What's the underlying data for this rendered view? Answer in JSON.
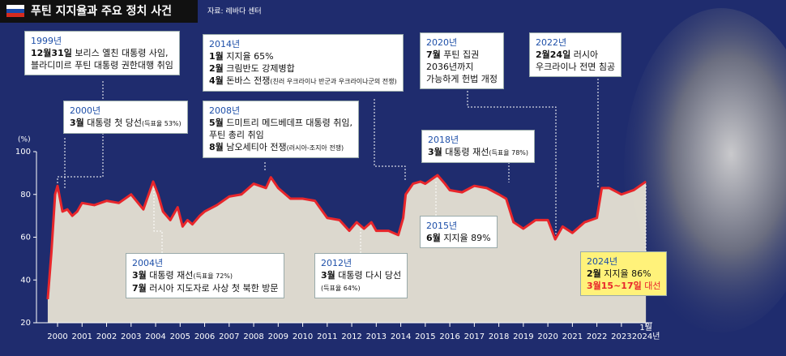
{
  "header": {
    "title": "푸틴 지지율과 주요 정치 사건",
    "source": "자료: 레바다 센터"
  },
  "chart_data": {
    "type": "line",
    "y_unit": "(%)",
    "x": [
      1999.6,
      1999.75,
      1999.9,
      2000.0,
      2000.2,
      2000.4,
      2000.6,
      2000.8,
      2001.0,
      2001.5,
      2002.0,
      2002.5,
      2003.0,
      2003.5,
      2003.9,
      2004.1,
      2004.3,
      2004.6,
      2004.9,
      2005.1,
      2005.3,
      2005.5,
      2005.8,
      2006.0,
      2006.5,
      2007.0,
      2007.5,
      2008.0,
      2008.5,
      2008.7,
      2009.0,
      2009.5,
      2010.0,
      2010.5,
      2011.0,
      2011.5,
      2011.9,
      2012.2,
      2012.5,
      2012.8,
      2013.0,
      2013.5,
      2013.9,
      2014.1,
      2014.2,
      2014.5,
      2014.8,
      2015.0,
      2015.5,
      2015.8,
      2016.0,
      2016.5,
      2017.0,
      2017.5,
      2018.0,
      2018.3,
      2018.6,
      2019.0,
      2019.5,
      2020.0,
      2020.3,
      2020.6,
      2021.0,
      2021.5,
      2022.0,
      2022.2,
      2022.5,
      2023.0,
      2023.5,
      2024.0
    ],
    "series": [
      {
        "color": "#e8262b",
        "values": [
          31,
          53,
          80,
          84,
          72,
          73,
          70,
          72,
          76,
          75,
          77,
          76,
          80,
          73,
          86,
          80,
          72,
          68,
          74,
          65,
          68,
          66,
          70,
          72,
          75,
          79,
          80,
          85,
          83,
          88,
          83,
          78,
          78,
          77,
          69,
          68,
          63,
          67,
          64,
          67,
          63,
          63,
          61,
          69,
          80,
          85,
          86,
          85,
          89,
          85,
          82,
          81,
          84,
          83,
          80,
          78,
          67,
          64,
          68,
          68,
          59,
          65,
          62,
          67,
          69,
          83,
          83,
          80,
          82,
          86
        ]
      }
    ],
    "xlim": [
      1999.14,
      2024.26
    ],
    "ylim": [
      20,
      100
    ],
    "yticks": [
      20,
      40,
      60,
      80,
      100
    ],
    "xticks": [
      2000,
      2001,
      2002,
      2003,
      2004,
      2005,
      2006,
      2007,
      2008,
      2009,
      2010,
      2011,
      2012,
      2013,
      2014,
      2015,
      2016,
      2017,
      2018,
      2019,
      2020,
      2021,
      2022,
      2023,
      {
        "value": 2024,
        "label": "2024년"
      }
    ],
    "last_tick_month": "1월",
    "grid": false,
    "annotations": [
      {
        "label": "1999년",
        "lines": [
          {
            "bold": "12월31일",
            "text": " 보리스 옐친 대통령 사임,"
          },
          {
            "text": "블라디미르 푸틴 대통령 권한대행 취임"
          }
        ]
      },
      {
        "label": "2000년",
        "lines": [
          {
            "bold": "3월",
            "text": " 대통령 첫 당선",
            "note": "(득표율 53%)"
          }
        ]
      },
      {
        "label": "2014년",
        "lines": [
          {
            "bold": "1월",
            "text": " 지지율 65%"
          },
          {
            "bold": "2월",
            "text": " 크림반도 강제병합"
          },
          {
            "bold": "4월",
            "text": " 돈바스 전쟁",
            "note": "(친러 우크라이나 반군과 우크라이나군의 전쟁)"
          }
        ]
      },
      {
        "label": "2008년",
        "lines": [
          {
            "bold": "5월",
            "text": " 드미트리 메드베데프 대통령 취임,"
          },
          {
            "text": "푸틴 총리 취임"
          },
          {
            "bold": "8월",
            "text": " 남오세티아 전쟁",
            "note": "(러시아-조지아 전쟁)"
          }
        ]
      },
      {
        "label": "2020년",
        "lines": [
          {
            "bold": "7월",
            "text": " 푸틴 집권"
          },
          {
            "text": "2036년까지"
          },
          {
            "text": "가능하게 헌법 개정"
          }
        ]
      },
      {
        "label": "2022년",
        "lines": [
          {
            "bold": "2월24일",
            "text": " 러시아"
          },
          {
            "text": "우크라이나 전면 침공"
          }
        ]
      },
      {
        "label": "2018년",
        "lines": [
          {
            "bold": "3월",
            "text": " 대통령 재선",
            "note": "(득표율 78%)"
          }
        ]
      },
      {
        "label": "2004년",
        "lines": [
          {
            "bold": "3월",
            "text": " 대통령 재선",
            "note": "(득표율 72%)"
          },
          {
            "bold": "7월",
            "text": " 러시아 지도자로 사상 첫 북한 방문"
          }
        ]
      },
      {
        "label": "2012년",
        "lines": [
          {
            "bold": "3월",
            "text": " 대통령 다시 당선"
          },
          {
            "note": "(득표율 64%)"
          }
        ]
      },
      {
        "label": "2015년",
        "lines": [
          {
            "bold": "6월",
            "text": " 지지율 89%"
          }
        ]
      },
      {
        "label": "2024년",
        "lines": [
          {
            "bold": "2월",
            "text": " 지지율 86%"
          },
          {
            "bold": "3월15~17일",
            "text": " 대선",
            "accent": "#e8262b"
          }
        ]
      }
    ]
  }
}
